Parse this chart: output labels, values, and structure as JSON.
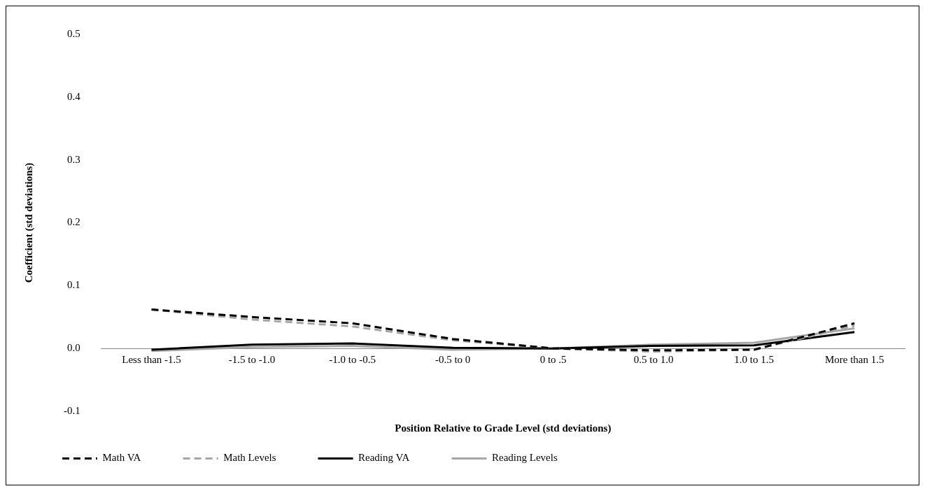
{
  "chart_data": {
    "type": "line",
    "xlabel": "Position Relative to Grade Level (std deviations)",
    "ylabel": "Coefficient (std deviations)",
    "categories": [
      "Less than -1.5",
      "-1.5 to -1.0",
      "-1.0 to -0.5",
      "-0.5 to 0",
      "0 to .5",
      "0.5 to 1.0",
      "1.0 to 1.5",
      "More than 1.5"
    ],
    "series": [
      {
        "name": "Math VA",
        "color": "#000000",
        "line_style": "dashed",
        "values": [
          0.062,
          0.05,
          0.04,
          0.015,
          0.0,
          -0.003,
          -0.002,
          0.04
        ]
      },
      {
        "name": "Math Levels",
        "color": "#a6a6a6",
        "line_style": "dashed",
        "values": [
          0.062,
          0.046,
          0.035,
          0.013,
          0.0,
          -0.005,
          -0.002,
          0.036
        ]
      },
      {
        "name": "Reading VA",
        "color": "#000000",
        "line_style": "solid",
        "values": [
          -0.002,
          0.006,
          0.008,
          0.001,
          0.0,
          0.004,
          0.005,
          0.026
        ]
      },
      {
        "name": "Reading Levels",
        "color": "#a6a6a6",
        "line_style": "solid",
        "values": [
          -0.004,
          0.002,
          0.004,
          -0.002,
          0.0,
          0.006,
          0.009,
          0.032
        ]
      }
    ],
    "ylim": [
      -0.1,
      0.5
    ],
    "yticks": [
      {
        "value": -0.1,
        "label": "-0.1"
      },
      {
        "value": 0,
        "label": "0.0"
      },
      {
        "value": 0.1,
        "label": "0.1"
      },
      {
        "value": 0.2,
        "label": "0.2"
      },
      {
        "value": 0.3,
        "label": "0.3"
      },
      {
        "value": 0.4,
        "label": "0.4"
      },
      {
        "value": 0.5,
        "label": "0.5"
      }
    ],
    "grid": false,
    "legend": "bottom",
    "marker": "none"
  }
}
